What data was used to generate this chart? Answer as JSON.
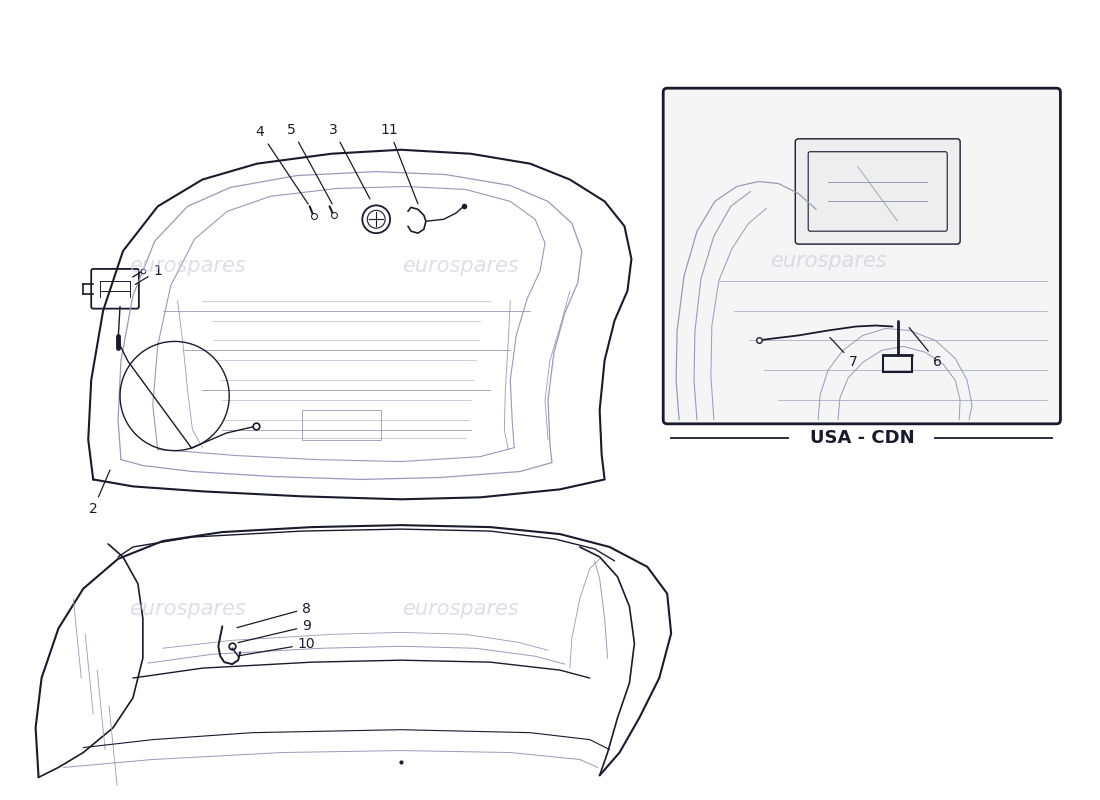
{
  "background_color": "#ffffff",
  "line_color": "#1a1a2e",
  "light_line_color": "#9999bb",
  "mid_line_color": "#6666888",
  "watermark_color": "#c8c8dd",
  "watermark_text": "eurospares",
  "usa_cdn_label": "USA - CDN",
  "fig_width": 11.0,
  "fig_height": 8.0,
  "dpi": 100
}
